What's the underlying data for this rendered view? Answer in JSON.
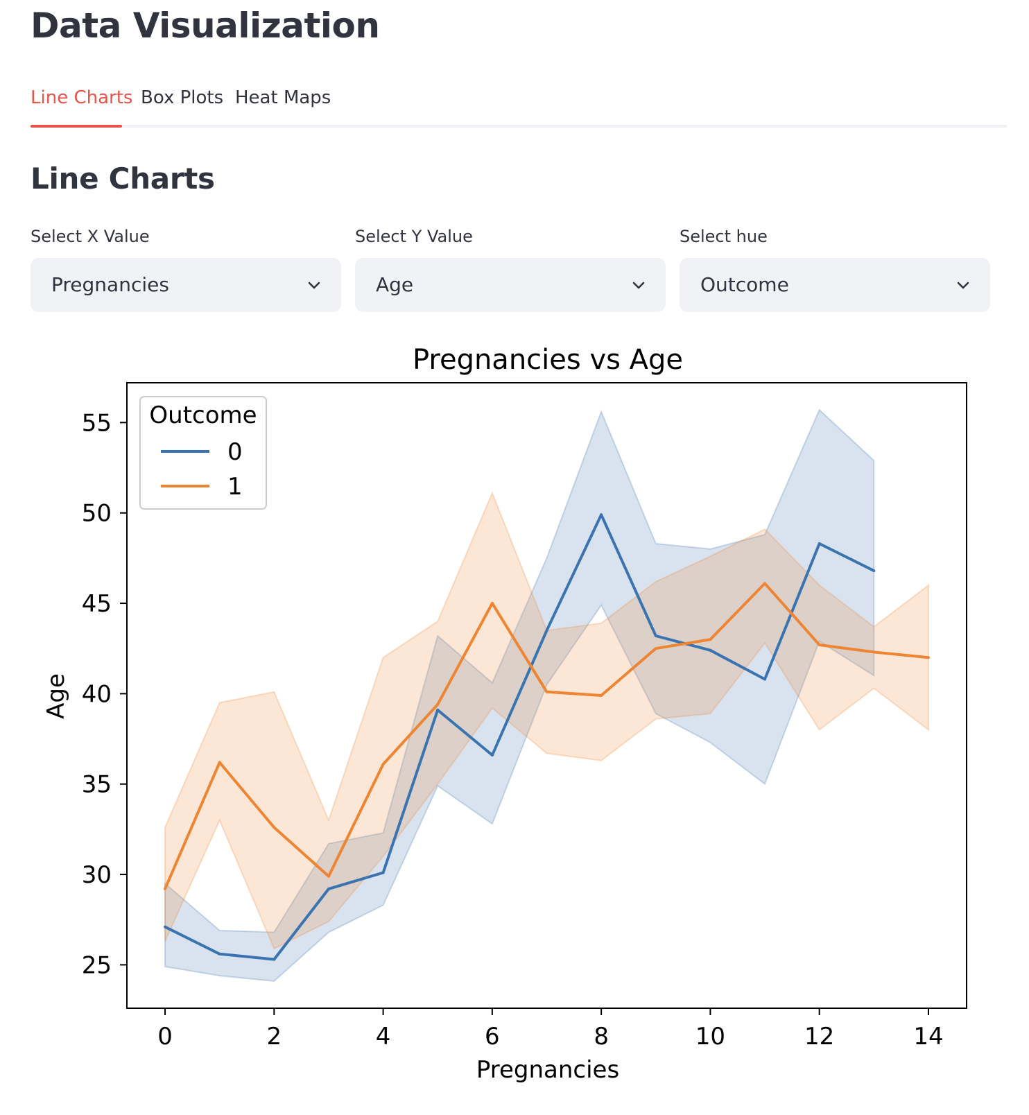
{
  "page": {
    "title": "Data Visualization"
  },
  "tabs": [
    {
      "label": "Line Charts",
      "active": true
    },
    {
      "label": "Box Plots",
      "active": false
    },
    {
      "label": "Heat Maps",
      "active": false
    }
  ],
  "section": {
    "title": "Line Charts"
  },
  "selects": {
    "x": {
      "label": "Select X Value",
      "value": "Pregnancies"
    },
    "y": {
      "label": "Select Y Value",
      "value": "Age"
    },
    "hue": {
      "label": "Select hue",
      "value": "Outcome"
    }
  },
  "icons": {
    "dropdown": "chevron-down-icon"
  },
  "colors": {
    "accent": "#e8544a",
    "series0": "#3a74b0",
    "series1": "#ee8533"
  },
  "chart_data": {
    "type": "line",
    "title": "Pregnancies vs Age",
    "xlabel": "Pregnancies",
    "ylabel": "Age",
    "xlim": [
      -0.7,
      14.7
    ],
    "ylim": [
      22.6,
      57.2
    ],
    "xticks": [
      0,
      2,
      4,
      6,
      8,
      10,
      12,
      14
    ],
    "yticks": [
      25,
      30,
      35,
      40,
      45,
      50,
      55
    ],
    "grid": false,
    "legend": {
      "title": "Outcome",
      "placement": "top-left"
    },
    "series": [
      {
        "name": "0",
        "color": "#3a74b0",
        "x": [
          0,
          1,
          2,
          3,
          4,
          5,
          6,
          7,
          8,
          9,
          10,
          11,
          12,
          13
        ],
        "y": [
          27.1,
          25.6,
          25.3,
          29.2,
          30.1,
          39.1,
          36.6,
          43.5,
          49.9,
          43.2,
          42.4,
          40.8,
          48.3,
          46.8
        ],
        "ci_low": [
          24.9,
          24.4,
          24.1,
          26.8,
          28.3,
          34.9,
          32.8,
          40.5,
          44.9,
          38.9,
          37.3,
          35.0,
          42.9,
          41.0
        ],
        "ci_high": [
          29.5,
          26.9,
          26.8,
          31.7,
          32.3,
          43.2,
          40.6,
          47.5,
          55.6,
          48.3,
          48.0,
          48.8,
          55.7,
          52.9
        ]
      },
      {
        "name": "1",
        "color": "#ee8533",
        "x": [
          0,
          1,
          2,
          3,
          4,
          5,
          6,
          7,
          8,
          9,
          10,
          11,
          12,
          13,
          14
        ],
        "y": [
          29.2,
          36.2,
          32.6,
          29.9,
          36.1,
          39.4,
          45.0,
          40.1,
          39.9,
          42.5,
          43.0,
          46.1,
          42.7,
          42.3,
          42.0
        ],
        "ci_low": [
          26.3,
          33.0,
          25.9,
          27.4,
          31.0,
          35.0,
          39.2,
          36.7,
          36.3,
          38.6,
          38.9,
          42.8,
          38.0,
          40.3,
          38.0
        ],
        "ci_high": [
          32.6,
          39.5,
          40.1,
          33.0,
          42.0,
          44.0,
          51.1,
          43.5,
          43.9,
          46.2,
          47.6,
          49.1,
          46.0,
          43.7,
          46.0
        ]
      }
    ]
  }
}
